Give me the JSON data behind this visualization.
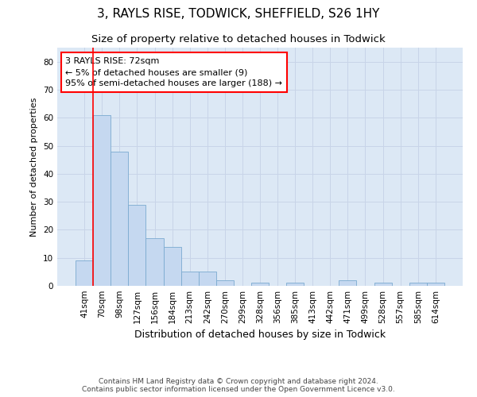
{
  "title": "3, RAYLS RISE, TODWICK, SHEFFIELD, S26 1HY",
  "subtitle": "Size of property relative to detached houses in Todwick",
  "xlabel": "Distribution of detached houses by size in Todwick",
  "ylabel": "Number of detached properties",
  "categories": [
    "41sqm",
    "70sqm",
    "98sqm",
    "127sqm",
    "156sqm",
    "184sqm",
    "213sqm",
    "242sqm",
    "270sqm",
    "299sqm",
    "328sqm",
    "356sqm",
    "385sqm",
    "413sqm",
    "442sqm",
    "471sqm",
    "499sqm",
    "528sqm",
    "557sqm",
    "585sqm",
    "614sqm"
  ],
  "values": [
    9,
    61,
    48,
    29,
    17,
    14,
    5,
    5,
    2,
    0,
    1,
    0,
    1,
    0,
    0,
    2,
    0,
    1,
    0,
    1,
    1
  ],
  "bar_color": "#c5d8f0",
  "bar_edge_color": "#7aaad0",
  "annotation_line1": "3 RAYLS RISE: 72sqm",
  "annotation_line2": "← 5% of detached houses are smaller (9)",
  "annotation_line3": "95% of semi-detached houses are larger (188) →",
  "annotation_box_color": "white",
  "annotation_box_edge_color": "red",
  "red_line_color": "red",
  "ylim": [
    0,
    85
  ],
  "yticks": [
    0,
    10,
    20,
    30,
    40,
    50,
    60,
    70,
    80
  ],
  "grid_color": "#c8d4e8",
  "background_color": "#dce8f5",
  "footer_line1": "Contains HM Land Registry data © Crown copyright and database right 2024.",
  "footer_line2": "Contains public sector information licensed under the Open Government Licence v3.0.",
  "title_fontsize": 11,
  "subtitle_fontsize": 9.5,
  "xlabel_fontsize": 9,
  "ylabel_fontsize": 8,
  "tick_fontsize": 7.5,
  "annotation_fontsize": 8,
  "footer_fontsize": 6.5
}
